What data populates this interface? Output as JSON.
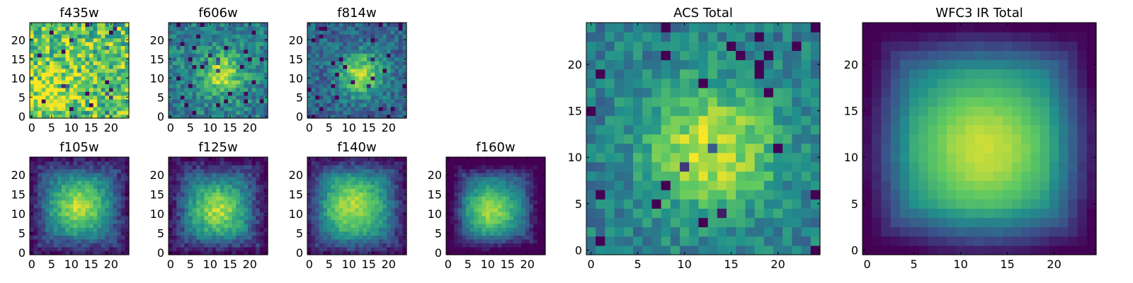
{
  "figure": {
    "colormap": "viridis",
    "colors": [
      "#440154",
      "#3b528b",
      "#21918c",
      "#5ec962",
      "#fde725"
    ]
  },
  "chart_data": [
    {
      "type": "heatmap",
      "title": "f435w",
      "xticks": [
        0,
        5,
        10,
        15,
        20
      ],
      "yticks": [
        0,
        5,
        10,
        15,
        20
      ],
      "xlim": [
        0,
        24
      ],
      "ylim": [
        0,
        24
      ],
      "grid": false,
      "pattern": {
        "peak": [
          4,
          6
        ],
        "sigma": 6,
        "amplitude": 0.15,
        "base": 0.72,
        "noise": 0.55,
        "edge_dark": 0.0,
        "seed": 11
      }
    },
    {
      "type": "heatmap",
      "title": "f606w",
      "xticks": [
        0,
        5,
        10,
        15,
        20
      ],
      "yticks": [
        0,
        5,
        10,
        15,
        20
      ],
      "xlim": [
        0,
        24
      ],
      "ylim": [
        0,
        24
      ],
      "grid": false,
      "pattern": {
        "peak": [
          13,
          11
        ],
        "sigma": 4,
        "amplitude": 0.45,
        "base": 0.42,
        "noise": 0.35,
        "edge_dark": 0.0,
        "seed": 23
      }
    },
    {
      "type": "heatmap",
      "title": "f814w",
      "xticks": [
        0,
        5,
        10,
        15,
        20
      ],
      "yticks": [
        0,
        5,
        10,
        15,
        20
      ],
      "xlim": [
        0,
        24
      ],
      "ylim": [
        0,
        24
      ],
      "grid": false,
      "pattern": {
        "peak": [
          13,
          11
        ],
        "sigma": 4,
        "amplitude": 0.55,
        "base": 0.32,
        "noise": 0.3,
        "edge_dark": 0.0,
        "seed": 37
      }
    },
    {
      "type": "heatmap",
      "title": "f105w",
      "xticks": [
        0,
        5,
        10,
        15,
        20
      ],
      "yticks": [
        0,
        5,
        10,
        15,
        20
      ],
      "xlim": [
        0,
        24
      ],
      "ylim": [
        0,
        24
      ],
      "grid": false,
      "pattern": {
        "peak": [
          12,
          12
        ],
        "sigma": 5,
        "amplitude": 0.6,
        "base": 0.3,
        "noise": 0.18,
        "edge_dark": 0.25,
        "seed": 41
      }
    },
    {
      "type": "heatmap",
      "title": "f125w",
      "xticks": [
        0,
        5,
        10,
        15,
        20
      ],
      "yticks": [
        0,
        5,
        10,
        15,
        20
      ],
      "xlim": [
        0,
        24
      ],
      "ylim": [
        0,
        24
      ],
      "grid": false,
      "pattern": {
        "peak": [
          12,
          11
        ],
        "sigma": 5,
        "amplitude": 0.6,
        "base": 0.28,
        "noise": 0.2,
        "edge_dark": 0.25,
        "seed": 53
      }
    },
    {
      "type": "heatmap",
      "title": "f140w",
      "xticks": [
        0,
        5,
        10,
        15,
        20
      ],
      "yticks": [
        0,
        5,
        10,
        15,
        20
      ],
      "xlim": [
        0,
        24
      ],
      "ylim": [
        0,
        24
      ],
      "grid": false,
      "pattern": {
        "peak": [
          11,
          12
        ],
        "sigma": 6,
        "amplitude": 0.6,
        "base": 0.28,
        "noise": 0.16,
        "edge_dark": 0.25,
        "seed": 61
      }
    },
    {
      "type": "heatmap",
      "title": "f160w",
      "xticks": [
        0,
        5,
        10,
        15,
        20
      ],
      "yticks": [
        0,
        5,
        10,
        15,
        20
      ],
      "xlim": [
        0,
        24
      ],
      "ylim": [
        0,
        24
      ],
      "grid": false,
      "pattern": {
        "peak": [
          11,
          11
        ],
        "sigma": 5,
        "amplitude": 0.65,
        "base": 0.22,
        "noise": 0.14,
        "edge_dark": 0.35,
        "seed": 73
      }
    },
    {
      "type": "heatmap",
      "title": "ACS Total",
      "xticks": [
        0,
        5,
        10,
        15,
        20
      ],
      "yticks": [
        0,
        5,
        10,
        15,
        20
      ],
      "xlim": [
        0,
        24
      ],
      "ylim": [
        0,
        24
      ],
      "grid": false,
      "pattern": {
        "peak": [
          13,
          11
        ],
        "sigma": 5,
        "amplitude": 0.5,
        "base": 0.42,
        "noise": 0.28,
        "edge_dark": 0.0,
        "seed": 89
      }
    },
    {
      "type": "heatmap",
      "title": "WFC3 IR Total",
      "xticks": [
        0,
        5,
        10,
        15,
        20
      ],
      "yticks": [
        0,
        5,
        10,
        15,
        20
      ],
      "xlim": [
        0,
        24
      ],
      "ylim": [
        0,
        24
      ],
      "grid": false,
      "pattern": {
        "peak": [
          12.5,
          11
        ],
        "sigma": 7,
        "amplitude": 0.72,
        "base": 0.2,
        "noise": 0.03,
        "edge_dark": 0.3,
        "seed": 97
      }
    }
  ]
}
